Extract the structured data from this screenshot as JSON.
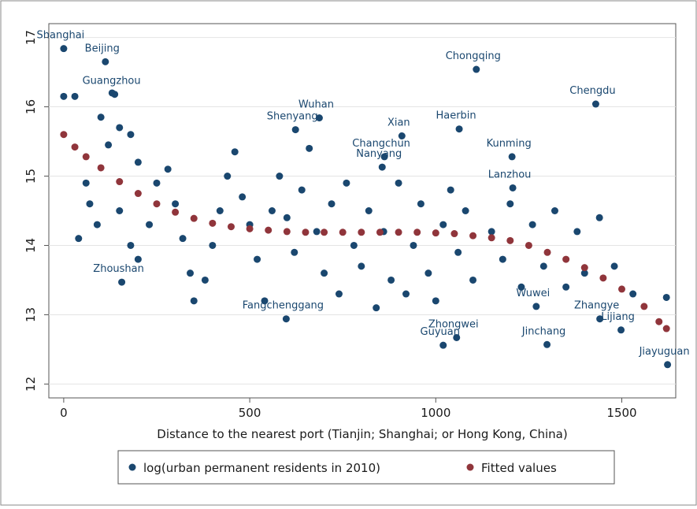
{
  "chart_data": {
    "type": "scatter",
    "xlabel": "Distance to the nearest port (Tianjin; Shanghai; or Hong Kong, China)",
    "xlim": [
      -40,
      1645
    ],
    "ylim": [
      11.8,
      17.2
    ],
    "xticks": [
      0,
      500,
      1000,
      1500
    ],
    "yticks": [
      12,
      13,
      14,
      15,
      16,
      17
    ],
    "grid": true,
    "legend": "bottom",
    "series": [
      {
        "name": "log(urban permanent residents in 2010)",
        "color": "#1a476f",
        "x": [
          0,
          112,
          1109,
          1430,
          687,
          909,
          1063,
          1205,
          1207,
          1299,
          1623,
          1056,
          1020,
          862,
          856,
          137,
          623,
          156,
          598,
          1498,
          1441,
          1270,
          0,
          30,
          130,
          100,
          150,
          120,
          180,
          200,
          60,
          70,
          90,
          40,
          150,
          180,
          200,
          230,
          250,
          280,
          300,
          320,
          340,
          350,
          380,
          400,
          420,
          440,
          460,
          480,
          500,
          520,
          540,
          560,
          580,
          600,
          620,
          640,
          660,
          680,
          700,
          720,
          740,
          760,
          780,
          800,
          820,
          840,
          860,
          880,
          900,
          920,
          940,
          960,
          980,
          1000,
          1020,
          1040,
          1060,
          1080,
          1100,
          1150,
          1180,
          1200,
          1230,
          1260,
          1290,
          1320,
          1350,
          1380,
          1400,
          1440,
          1480,
          1530,
          1620
        ],
        "values": [
          16.84,
          16.65,
          16.54,
          16.04,
          15.84,
          15.58,
          15.68,
          15.28,
          14.83,
          12.57,
          12.28,
          12.67,
          12.56,
          15.28,
          15.13,
          16.18,
          15.67,
          13.47,
          12.94,
          12.78,
          12.94,
          13.12,
          16.15,
          16.15,
          16.2,
          15.85,
          15.7,
          15.45,
          15.6,
          15.2,
          14.9,
          14.6,
          14.3,
          14.1,
          14.5,
          14.0,
          13.8,
          14.3,
          14.9,
          15.1,
          14.6,
          14.1,
          13.6,
          13.2,
          13.5,
          14.0,
          14.5,
          15.0,
          15.35,
          14.7,
          14.3,
          13.8,
          13.2,
          14.5,
          15.0,
          14.4,
          13.9,
          14.8,
          15.4,
          14.2,
          13.6,
          14.6,
          13.3,
          14.9,
          14.0,
          13.7,
          14.5,
          13.1,
          14.2,
          13.5,
          14.9,
          13.3,
          14.0,
          14.6,
          13.6,
          13.2,
          14.3,
          14.8,
          13.9,
          14.5,
          13.5,
          14.2,
          13.8,
          14.6,
          13.4,
          14.3,
          13.7,
          14.5,
          13.4,
          14.2,
          13.6,
          14.4,
          13.7,
          13.3,
          13.25
        ],
        "labels": [
          "Shanghai",
          "Beijing",
          "Chongqing",
          "Chengdu",
          "Wuhan",
          "Xian",
          "Haerbin",
          "Kunming",
          "Lanzhou",
          "Jinchang",
          "Jiayuguan",
          "Zhongwei",
          "Guyuan",
          "Changchun",
          "Nanyang",
          "Guangzhou",
          "Shenyang",
          "Zhoushan",
          "Fangchenggang",
          "Lijiang",
          "Zhangye",
          "Wuwei",
          null,
          null,
          null,
          null,
          null,
          null,
          null,
          null,
          null,
          null,
          null,
          null,
          null,
          null,
          null,
          null,
          null,
          null,
          null,
          null,
          null,
          null,
          null,
          null,
          null,
          null,
          null,
          null,
          null,
          null,
          null,
          null,
          null,
          null,
          null,
          null,
          null,
          null,
          null,
          null,
          null,
          null,
          null,
          null,
          null,
          null,
          null,
          null,
          null,
          null,
          null,
          null,
          null,
          null,
          null,
          null,
          null,
          null,
          null,
          null,
          null,
          null,
          null,
          null,
          null,
          null,
          null,
          null,
          null
        ]
      },
      {
        "name": "Fitted values",
        "color": "#90353b",
        "x": [
          0,
          30,
          60,
          100,
          150,
          200,
          250,
          300,
          350,
          400,
          450,
          500,
          550,
          600,
          650,
          700,
          750,
          800,
          850,
          900,
          950,
          1000,
          1050,
          1100,
          1150,
          1200,
          1250,
          1300,
          1350,
          1400,
          1450,
          1500,
          1560,
          1600,
          1620
        ],
        "values": [
          15.6,
          15.42,
          15.28,
          15.12,
          14.92,
          14.75,
          14.6,
          14.48,
          14.39,
          14.32,
          14.27,
          14.24,
          14.22,
          14.2,
          14.19,
          14.19,
          14.19,
          14.19,
          14.19,
          14.19,
          14.19,
          14.18,
          14.17,
          14.14,
          14.11,
          14.07,
          14.0,
          13.9,
          13.8,
          13.68,
          13.53,
          13.37,
          13.12,
          12.9,
          12.8
        ]
      }
    ]
  }
}
